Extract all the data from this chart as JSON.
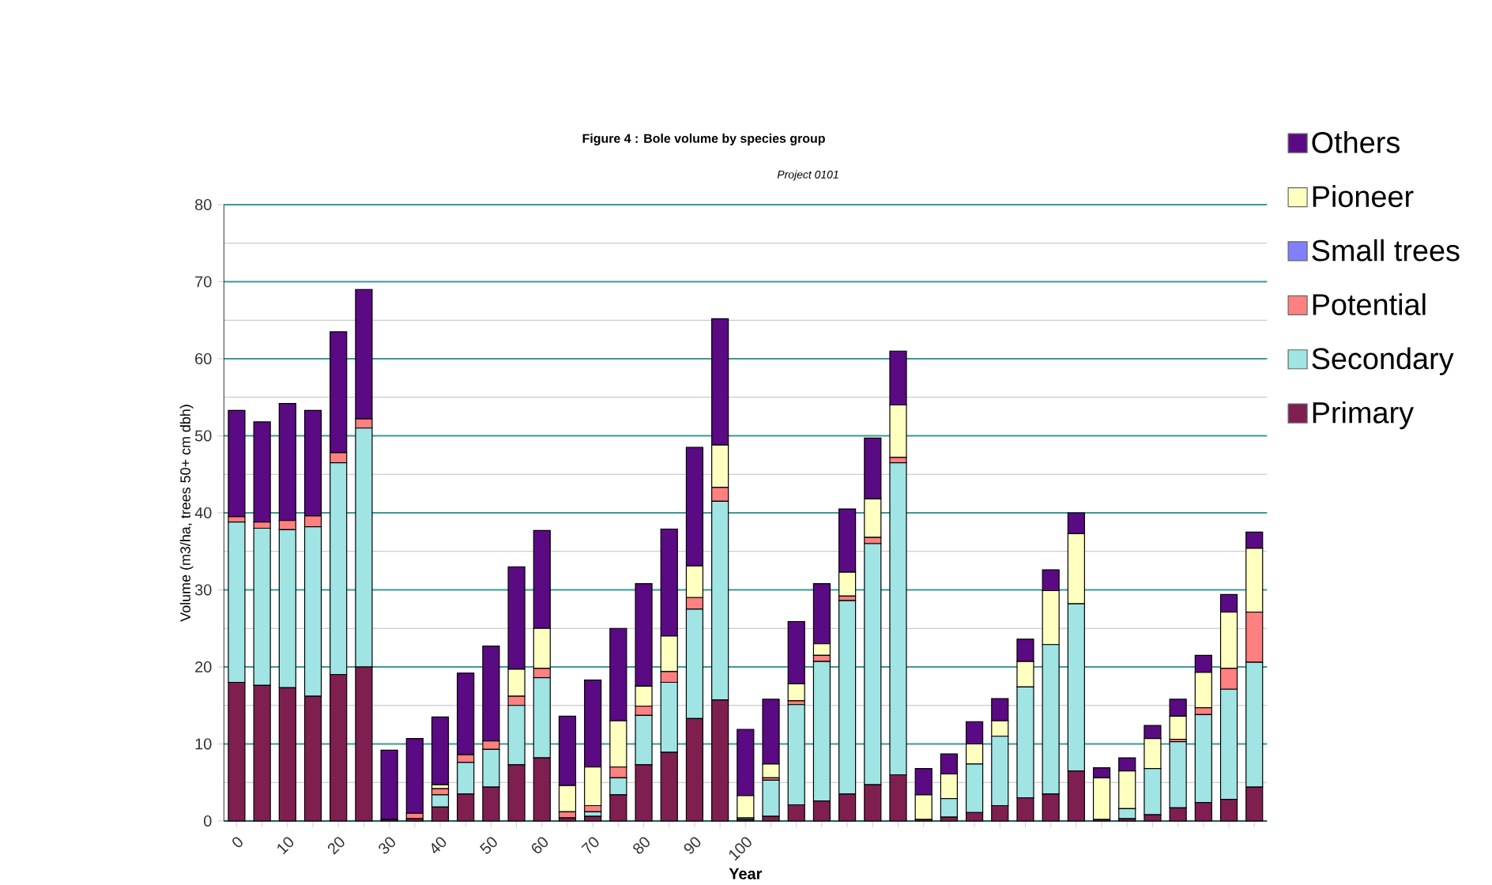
{
  "chart_data": {
    "type": "bar",
    "stacked": true,
    "title": "Figure 4 : Bole volume by species group",
    "subtitle": "Project 0101",
    "xlabel": "Year",
    "ylabel": "Volume (m3/ha, trees 50+ cm dbh)",
    "categories": [
      "0",
      null,
      "10",
      null,
      "20",
      null,
      "30",
      null,
      "40",
      null,
      "50",
      null,
      "60",
      null,
      "70",
      null,
      "80",
      null,
      "90",
      null,
      "100",
      null,
      null,
      null,
      null,
      null,
      null,
      null,
      null,
      null,
      null,
      null,
      null,
      null,
      null,
      null,
      null,
      null,
      null,
      null,
      null
    ],
    "ylim": [
      0,
      80
    ],
    "yticks": [
      0,
      10,
      20,
      30,
      40,
      50,
      60,
      70,
      80
    ],
    "grid": "y",
    "legend": "right",
    "series": [
      {
        "name": "Primary",
        "color": "#7f1f50",
        "values": [
          18,
          17.6,
          17.3,
          16.2,
          19,
          20,
          0.2,
          0.3,
          1.8,
          3.5,
          4.4,
          7.3,
          8.2,
          0.4,
          0.6,
          3.4,
          7.3,
          8.9,
          13.3,
          15.7,
          0.2,
          0.6,
          2.1,
          2.6,
          3.5,
          4.7,
          6,
          0.2,
          0.5,
          1.1,
          2,
          3,
          3.5,
          6.5,
          0.2,
          0.3,
          0.8,
          1.7,
          2.4,
          2.8,
          4.4
        ]
      },
      {
        "name": "Secondary",
        "color": "#a0e4e4",
        "values": [
          20.8,
          20.4,
          20.5,
          22,
          27.5,
          31,
          0,
          null,
          1.6,
          4.1,
          4.9,
          7.7,
          10.4,
          0,
          0.6,
          2.2,
          6.4,
          9.1,
          14.2,
          25.8,
          0.2,
          4.7,
          13,
          18.1,
          25.1,
          31.3,
          40.5,
          0,
          2.4,
          6.3,
          9,
          14.4,
          19.4,
          21.7,
          0,
          1.3,
          6,
          8.6,
          11.4,
          14.3,
          16.2
        ]
      },
      {
        "name": "Potential",
        "color": "#ff8080",
        "values": [
          0.7,
          0.8,
          1.2,
          1.4,
          1.3,
          1.2,
          0,
          0.7,
          0.8,
          1,
          1.1,
          1.2,
          1.2,
          0.8,
          0.8,
          1.4,
          1.2,
          1.4,
          1.5,
          1.8,
          0,
          0.3,
          0.5,
          0.8,
          0.6,
          0.8,
          0.7,
          0,
          0,
          0,
          0,
          0,
          0,
          0,
          0,
          0,
          0,
          0.3,
          0.9,
          2.7,
          6.5
        ]
      },
      {
        "name": "Small trees",
        "color": "#8080ff",
        "values": [
          0,
          0,
          0,
          0,
          0,
          0,
          0,
          0,
          0,
          0,
          0,
          0,
          0,
          0,
          0,
          0,
          0,
          0,
          0,
          0,
          0,
          0,
          0,
          0,
          0,
          0,
          0,
          0,
          0,
          0,
          0,
          0,
          0,
          0,
          0,
          0,
          0,
          0,
          0,
          0,
          0
        ]
      },
      {
        "name": "Pioneer",
        "color": "#ffffc0",
        "values": [
          0,
          0,
          0,
          0,
          0,
          0,
          0,
          0,
          0.5,
          0,
          0,
          3.5,
          5.2,
          3.4,
          5,
          6,
          2.6,
          4.6,
          4.1,
          5.5,
          2.9,
          1.8,
          2.2,
          1.5,
          3.1,
          5,
          6.8,
          3.2,
          3.2,
          2.6,
          2,
          3.3,
          7,
          9.1,
          5.4,
          4.9,
          3.9,
          3,
          4.6,
          7.3,
          8.3
        ]
      },
      {
        "name": "Others",
        "color": "#5a0a82",
        "values": [
          13.8,
          13,
          15.2,
          13.7,
          15.7,
          16.8,
          9,
          9.7,
          8.8,
          10.6,
          12.3,
          13.3,
          12.7,
          9,
          11.3,
          12,
          13.3,
          13.9,
          15.4,
          16.4,
          8.6,
          8.4,
          8.1,
          7.8,
          8.2,
          7.9,
          7,
          3.4,
          2.6,
          2.9,
          2.9,
          2.9,
          2.7,
          2.7,
          1.3,
          1.7,
          1.7,
          2.2,
          2.2,
          2.3,
          2.1
        ]
      }
    ]
  }
}
